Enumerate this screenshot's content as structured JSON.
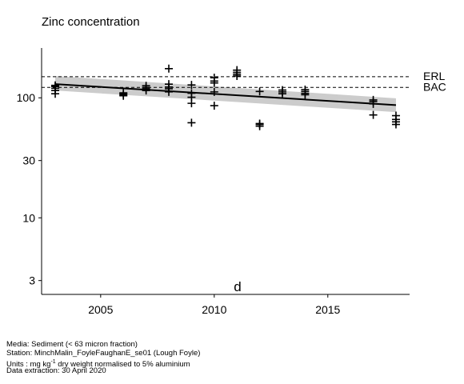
{
  "chart_data": {
    "type": "scatter",
    "title": "Zinc concentration",
    "panel_label": "d",
    "xlabel": "",
    "ylabel": "",
    "y_scale": "log",
    "xlim": [
      2002.4,
      2018.6
    ],
    "ylim": [
      2.3,
      260
    ],
    "x_ticks": [
      2005,
      2010,
      2015
    ],
    "y_ticks": [
      3,
      10,
      30,
      100
    ],
    "grid": false,
    "points": [
      {
        "x": 2003,
        "y": 108
      },
      {
        "x": 2003,
        "y": 115
      },
      {
        "x": 2003,
        "y": 120
      },
      {
        "x": 2003,
        "y": 124
      },
      {
        "x": 2003,
        "y": 127
      },
      {
        "x": 2006,
        "y": 104
      },
      {
        "x": 2006,
        "y": 106
      },
      {
        "x": 2006,
        "y": 108
      },
      {
        "x": 2006,
        "y": 110
      },
      {
        "x": 2007,
        "y": 115
      },
      {
        "x": 2007,
        "y": 119
      },
      {
        "x": 2007,
        "y": 122
      },
      {
        "x": 2007,
        "y": 126
      },
      {
        "x": 2008,
        "y": 112
      },
      {
        "x": 2008,
        "y": 119
      },
      {
        "x": 2008,
        "y": 123
      },
      {
        "x": 2008,
        "y": 130
      },
      {
        "x": 2008,
        "y": 175
      },
      {
        "x": 2009,
        "y": 62
      },
      {
        "x": 2009,
        "y": 90
      },
      {
        "x": 2009,
        "y": 101
      },
      {
        "x": 2009,
        "y": 109
      },
      {
        "x": 2009,
        "y": 128
      },
      {
        "x": 2010,
        "y": 86
      },
      {
        "x": 2010,
        "y": 112
      },
      {
        "x": 2010,
        "y": 133
      },
      {
        "x": 2010,
        "y": 138
      },
      {
        "x": 2010,
        "y": 147
      },
      {
        "x": 2011,
        "y": 152
      },
      {
        "x": 2011,
        "y": 157
      },
      {
        "x": 2011,
        "y": 163
      },
      {
        "x": 2011,
        "y": 170
      },
      {
        "x": 2012,
        "y": 58
      },
      {
        "x": 2012,
        "y": 60
      },
      {
        "x": 2012,
        "y": 61
      },
      {
        "x": 2012,
        "y": 113
      },
      {
        "x": 2013,
        "y": 108
      },
      {
        "x": 2013,
        "y": 112
      },
      {
        "x": 2013,
        "y": 116
      },
      {
        "x": 2014,
        "y": 106
      },
      {
        "x": 2014,
        "y": 109
      },
      {
        "x": 2014,
        "y": 113
      },
      {
        "x": 2014,
        "y": 117
      },
      {
        "x": 2017,
        "y": 72
      },
      {
        "x": 2017,
        "y": 89
      },
      {
        "x": 2017,
        "y": 93
      },
      {
        "x": 2017,
        "y": 96
      },
      {
        "x": 2018,
        "y": 60
      },
      {
        "x": 2018,
        "y": 63
      },
      {
        "x": 2018,
        "y": 66
      },
      {
        "x": 2018,
        "y": 71
      }
    ],
    "trend": {
      "x": [
        2003,
        2018
      ],
      "y": [
        130,
        87
      ],
      "ci_lower": [
        115,
        76
      ],
      "ci_upper": [
        152,
        99
      ]
    },
    "reference_lines": [
      {
        "label": "ERL",
        "y": 150,
        "style": "dashed"
      },
      {
        "label": "BAC",
        "y": 122,
        "style": "dashed"
      }
    ],
    "colors": {
      "points": "#000000",
      "trend": "#000000",
      "ci_band": "#cccccc",
      "reference": "#000000"
    }
  },
  "caption": {
    "media": "Media: Sediment (< 63 micron fraction)",
    "station": "Station: MinchMalin_FoyleFaughanE_se01 (Lough Foyle)",
    "units_prefix": "Units : mg kg",
    "units_exponent": "-1",
    "units_suffix": " dry weight normalised to 5% aluminium",
    "extraction": "Data extraction: 30 April 2020"
  }
}
